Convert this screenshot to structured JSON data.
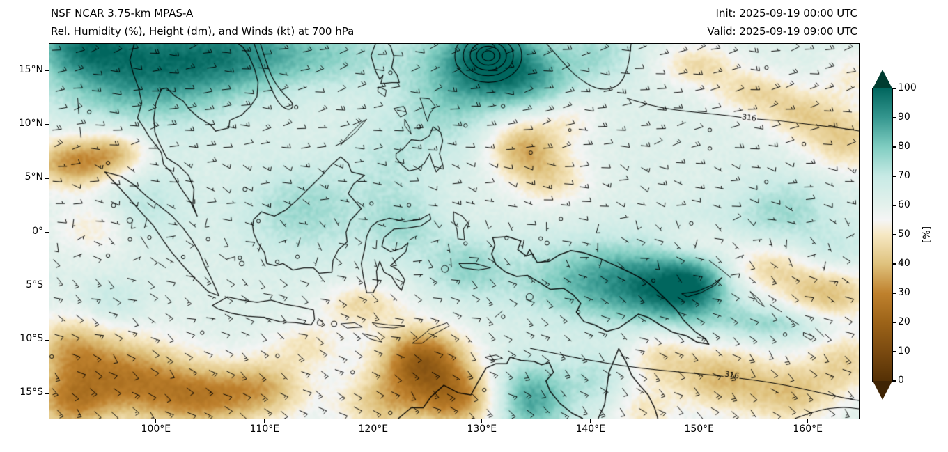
{
  "header": {
    "title_line1": "NSF NCAR 3.75-km MPAS-A",
    "title_line2": "Rel. Humidity (%), Height (dm), and Winds (kt) at 700 hPa",
    "init_label": "Init: 2025-09-19 00:00 UTC",
    "valid_label": "Valid: 2025-09-19 09:00 UTC"
  },
  "chart_data": {
    "type": "heatmap",
    "model": "NSF NCAR 3.75-km MPAS-A",
    "title": "Rel. Humidity (%), Height (dm), and Winds (kt) at 700 hPa",
    "level_hPa": 700,
    "init_time": "2025-09-19 00:00 UTC",
    "valid_time": "2025-09-19 09:00 UTC",
    "x_axis": {
      "tick_labels": [
        "100°E",
        "110°E",
        "120°E",
        "130°E",
        "140°E",
        "150°E",
        "160°E"
      ],
      "tick_lons": [
        100,
        110,
        120,
        130,
        140,
        150,
        160
      ],
      "range_lon": [
        90.2,
        164.7
      ]
    },
    "y_axis": {
      "tick_labels": [
        "15°N",
        "10°N",
        "5°N",
        "0°",
        "5°S",
        "10°S",
        "15°S"
      ],
      "tick_lats": [
        15,
        10,
        5,
        0,
        -5,
        -10,
        -15
      ],
      "range_lat": [
        -17.3,
        17.5
      ]
    },
    "colorbar": {
      "label": "[%]",
      "tick_values": [
        100,
        90,
        80,
        70,
        60,
        50,
        40,
        30,
        20,
        10,
        0
      ],
      "colormap_stops": [
        [
          0,
          "#543005"
        ],
        [
          10,
          "#7a4a10"
        ],
        [
          20,
          "#9c6318"
        ],
        [
          30,
          "#bf812d"
        ],
        [
          40,
          "#dfc27d"
        ],
        [
          50,
          "#f6e8c3"
        ],
        [
          55,
          "#f5f5f5"
        ],
        [
          60,
          "#e4f1ec"
        ],
        [
          70,
          "#c7eae5"
        ],
        [
          80,
          "#80cdc1"
        ],
        [
          90,
          "#35978f"
        ],
        [
          100,
          "#01665e"
        ]
      ],
      "over_color": "#003c30",
      "under_color": "#3f2404"
    },
    "contour_labels": [
      {
        "text": "316",
        "lon": 154.6,
        "lat": 10.6,
        "angle_deg": 7
      },
      {
        "text": "316",
        "lon": 153.0,
        "lat": -13.3,
        "angle_deg": 10
      }
    ],
    "rh_field": {
      "base": 62,
      "note": "gaussian features: [lon, lat, amplitude_%RH, sigma_lon_deg, sigma_lat_deg]",
      "gaussian_features": [
        [
          99,
          15.5,
          33,
          6,
          3.5
        ],
        [
          93,
          17.5,
          18,
          3,
          2
        ],
        [
          107,
          16.5,
          14,
          4,
          2.5
        ],
        [
          115,
          16.5,
          16,
          6,
          2.2
        ],
        [
          130.6,
          16,
          36,
          3.4,
          2.6
        ],
        [
          135,
          14,
          16,
          3,
          2.2
        ],
        [
          141,
          16.5,
          12,
          2.5,
          1.8
        ],
        [
          126.5,
          11.5,
          12,
          3.5,
          3
        ],
        [
          113.5,
          2,
          14,
          4,
          3
        ],
        [
          98.5,
          2.5,
          10,
          3,
          2.5
        ],
        [
          121.5,
          6.5,
          8,
          3,
          3
        ],
        [
          142,
          -4.5,
          26,
          6,
          2.6
        ],
        [
          148,
          -6,
          20,
          3.5,
          2.2
        ],
        [
          128.5,
          -3.2,
          14,
          2.6,
          2
        ],
        [
          122.8,
          0.5,
          12,
          2.6,
          2.2
        ],
        [
          152.5,
          -1.5,
          18,
          4,
          2.2
        ],
        [
          161.5,
          -2.5,
          14,
          3,
          2
        ],
        [
          158,
          2.5,
          12,
          3,
          2
        ],
        [
          134.5,
          -15.5,
          26,
          2.6,
          2.4
        ],
        [
          140.5,
          -13.5,
          10,
          1.8,
          1.8
        ],
        [
          157,
          -8.5,
          15,
          4,
          1.2
        ],
        [
          149.5,
          -4.8,
          12,
          2,
          1.5
        ],
        [
          96,
          -6.5,
          8,
          2,
          1.5
        ],
        [
          92.5,
          6.5,
          -30,
          3,
          1.7
        ],
        [
          96.5,
          7.5,
          -16,
          2,
          1.4
        ],
        [
          94.5,
          0.5,
          -12,
          2.5,
          1.8
        ],
        [
          133.8,
          8,
          -24,
          2.3,
          2
        ],
        [
          136.5,
          5,
          -14,
          2.5,
          1.8
        ],
        [
          138,
          10.5,
          -10,
          2,
          1.5
        ],
        [
          150,
          15.5,
          -15,
          2.6,
          1.4
        ],
        [
          155,
          13,
          -15,
          2.6,
          1.4
        ],
        [
          159.5,
          11,
          -16,
          2.6,
          1.6
        ],
        [
          163.5,
          8.5,
          -18,
          2.6,
          2
        ],
        [
          164,
          14.5,
          -10,
          1.8,
          1.5
        ],
        [
          150.5,
          -1,
          -18,
          3,
          1.4
        ],
        [
          156,
          -3,
          -26,
          3.5,
          1.8
        ],
        [
          162,
          -5.5,
          -24,
          3,
          2
        ],
        [
          119,
          -6.8,
          -16,
          2.6,
          1.4
        ],
        [
          124.5,
          -12,
          -42,
          2.8,
          2.2
        ],
        [
          128,
          -15.5,
          -30,
          2.6,
          2
        ],
        [
          121,
          -16,
          -20,
          3,
          2
        ],
        [
          97,
          -13.5,
          -32,
          4.5,
          2.6
        ],
        [
          104,
          -15.5,
          -26,
          3.5,
          2
        ],
        [
          92,
          -10.5,
          -18,
          2.6,
          2
        ],
        [
          92,
          -16,
          -22,
          2.5,
          2
        ],
        [
          110,
          -14.5,
          -22,
          3,
          2
        ],
        [
          114,
          -10.5,
          -12,
          2.5,
          1.5
        ],
        [
          146.5,
          -11.5,
          -14,
          2.2,
          2
        ],
        [
          152,
          -13.5,
          -22,
          3,
          2.2
        ],
        [
          158.5,
          -15,
          -20,
          3,
          2
        ],
        [
          163.5,
          -12,
          -16,
          2.5,
          2
        ],
        [
          145,
          -16.8,
          -12,
          2,
          1.5
        ]
      ]
    },
    "winds": {
      "units": "kt",
      "regime": "easterly flow both hemispheres, weak/variable near the equator, cyclonic circulation near 130.5E 16N"
    }
  }
}
